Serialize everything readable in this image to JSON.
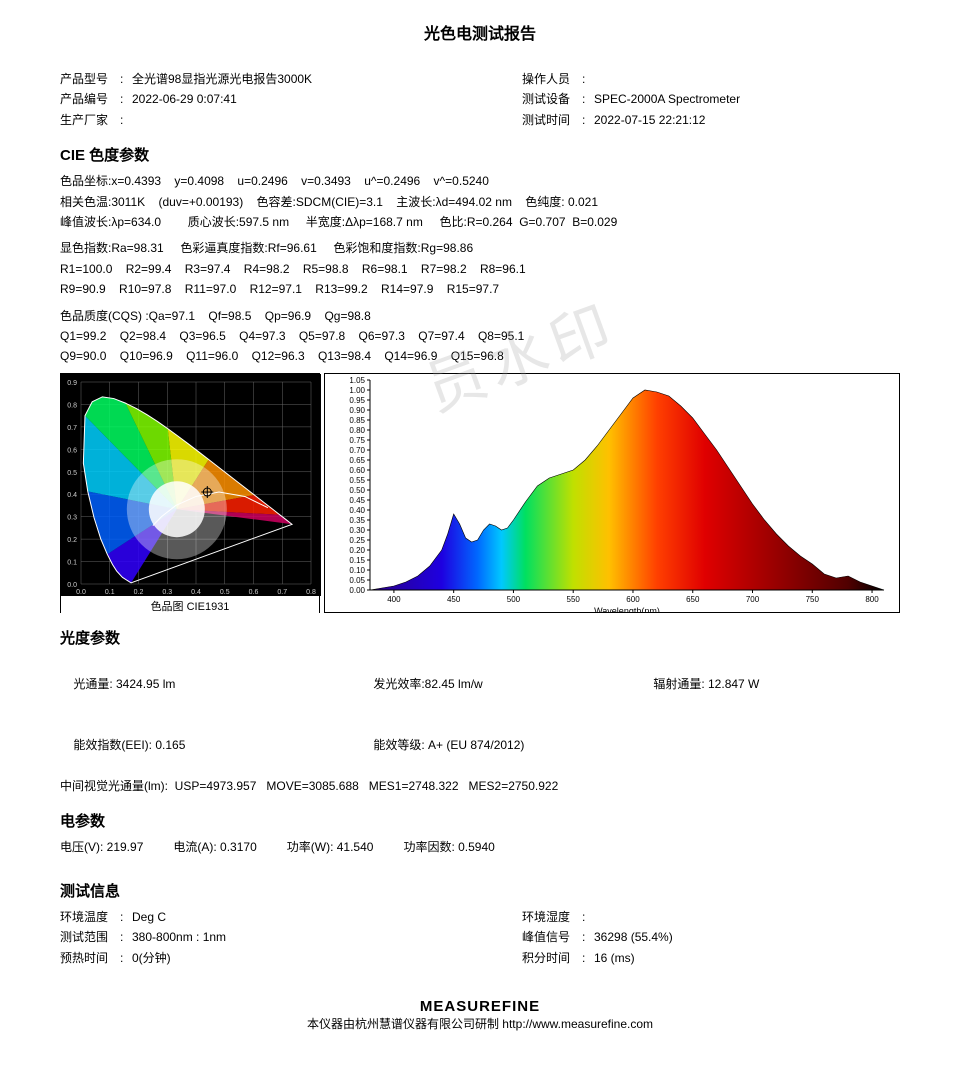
{
  "title": "光色电测试报告",
  "meta": {
    "left": {
      "model_label": "产品型号",
      "model_value": "全光谱98显指光源光电报告3000K",
      "serial_label": "产品编号",
      "serial_value": "2022-06-29 0:07:41",
      "manu_label": "生产厂家",
      "manu_value": ""
    },
    "right": {
      "operator_label": "操作人员",
      "operator_value": "",
      "device_label": "测试设备",
      "device_value": "SPEC-2000A Spectrometer",
      "time_label": "测试时间",
      "time_value": "2022-07-15 22:21:12"
    }
  },
  "cie_section_title": "CIE 色度参数",
  "cie_lines": [
    "色品坐标:x=0.4393    y=0.4098    u=0.2496    v=0.3493    u^=0.2496    v^=0.5240",
    "相关色温:3011K    (duv=+0.00193)    色容差:SDCM(CIE)=3.1    主波长:λd=494.02 nm    色纯度: 0.021",
    "峰值波长:λp=634.0        质心波长:597.5 nm     半宽度:Δλp=168.7 nm     色比:R=0.264  G=0.707  B=0.029"
  ],
  "cri_lines": [
    "显色指数:Ra=98.31     色彩逼真度指数:Rf=96.61     色彩饱和度指数:Rg=98.86",
    "R1=100.0    R2=99.4    R3=97.4    R4=98.2    R5=98.8    R6=98.1    R7=98.2    R8=96.1",
    "R9=90.9    R10=97.8    R11=97.0    R12=97.1    R13=99.2    R14=97.9    R15=97.7"
  ],
  "cqs_lines": [
    "色品质度(CQS) :Qa=97.1    Qf=98.5    Qp=96.9    Qg=98.8",
    "Q1=99.2    Q2=98.4    Q3=96.5    Q4=97.3    Q5=97.8    Q6=97.3    Q7=97.4    Q8=95.1",
    "Q9=90.0    Q10=96.9    Q11=96.0    Q12=96.3    Q13=98.4    Q14=96.9    Q15=96.8"
  ],
  "cie_chart": {
    "caption": "色品图 CIE1931",
    "bg": "#000000",
    "grid_color": "#666666",
    "locus_label_color": "#cccccc",
    "marker_x": 0.4393,
    "marker_y": 0.4098
  },
  "spd_chart": {
    "x_label": "Wavelength(nm)",
    "x_min": 380,
    "x_max": 810,
    "x_ticks": [
      400,
      450,
      500,
      550,
      600,
      650,
      700,
      750,
      800
    ],
    "y_min": 0,
    "y_max": 1.05,
    "y_ticks": [
      0.0,
      0.05,
      0.1,
      0.15,
      0.2,
      0.25,
      0.3,
      0.35,
      0.4,
      0.45,
      0.5,
      0.55,
      0.6,
      0.65,
      0.7,
      0.75,
      0.8,
      0.85,
      0.9,
      0.95,
      1.0,
      1.05
    ],
    "tick_fontsize": 8,
    "axis_color": "#000000",
    "stops": [
      {
        "nm": 380,
        "color": "#2b0084"
      },
      {
        "nm": 440,
        "color": "#1e00e0"
      },
      {
        "nm": 470,
        "color": "#0068ff"
      },
      {
        "nm": 490,
        "color": "#00c8ff"
      },
      {
        "nm": 510,
        "color": "#00e060"
      },
      {
        "nm": 550,
        "color": "#c0e000"
      },
      {
        "nm": 580,
        "color": "#ffc000"
      },
      {
        "nm": 620,
        "color": "#ff4000"
      },
      {
        "nm": 660,
        "color": "#e00000"
      },
      {
        "nm": 780,
        "color": "#500000"
      },
      {
        "nm": 810,
        "color": "#000000"
      }
    ],
    "curve": [
      [
        380,
        0.0
      ],
      [
        390,
        0.01
      ],
      [
        400,
        0.02
      ],
      [
        410,
        0.04
      ],
      [
        420,
        0.07
      ],
      [
        430,
        0.12
      ],
      [
        440,
        0.2
      ],
      [
        445,
        0.28
      ],
      [
        450,
        0.38
      ],
      [
        455,
        0.33
      ],
      [
        460,
        0.26
      ],
      [
        465,
        0.24
      ],
      [
        470,
        0.25
      ],
      [
        475,
        0.3
      ],
      [
        480,
        0.33
      ],
      [
        485,
        0.32
      ],
      [
        490,
        0.3
      ],
      [
        495,
        0.31
      ],
      [
        500,
        0.35
      ],
      [
        510,
        0.44
      ],
      [
        520,
        0.52
      ],
      [
        530,
        0.56
      ],
      [
        540,
        0.58
      ],
      [
        550,
        0.6
      ],
      [
        560,
        0.65
      ],
      [
        570,
        0.72
      ],
      [
        580,
        0.8
      ],
      [
        590,
        0.88
      ],
      [
        600,
        0.96
      ],
      [
        610,
        1.0
      ],
      [
        620,
        0.99
      ],
      [
        630,
        0.97
      ],
      [
        640,
        0.92
      ],
      [
        650,
        0.86
      ],
      [
        660,
        0.78
      ],
      [
        670,
        0.7
      ],
      [
        680,
        0.61
      ],
      [
        690,
        0.52
      ],
      [
        700,
        0.43
      ],
      [
        710,
        0.35
      ],
      [
        720,
        0.28
      ],
      [
        730,
        0.22
      ],
      [
        740,
        0.17
      ],
      [
        750,
        0.13
      ],
      [
        760,
        0.08
      ],
      [
        770,
        0.06
      ],
      [
        780,
        0.07
      ],
      [
        790,
        0.04
      ],
      [
        800,
        0.02
      ],
      [
        810,
        0.0
      ]
    ]
  },
  "photometric_title": "光度参数",
  "photometric": {
    "line1_a": "光通量: 3424.95 lm",
    "line1_b": "发光效率:82.45 lm/w",
    "line1_c": "辐射通量: 12.847 W",
    "line2_a": "能效指数(EEI): 0.165",
    "line2_b": "能效等级: A+ (EU 874/2012)",
    "line3": "中间视觉光通量(lm):  USP=4973.957   MOVE=3085.688   MES1=2748.322   MES2=2750.922"
  },
  "electrical_title": "电参数",
  "electrical_line": "电压(V): 219.97         电流(A): 0.3170         功率(W): 41.540         功率因数: 0.5940",
  "testinfo_title": "测试信息",
  "testinfo": {
    "left": {
      "temp_label": "环境温度",
      "temp_value": "Deg C",
      "range_label": "测试范围",
      "range_value": "380-800nm : 1nm",
      "preheat_label": "预热时间",
      "preheat_value": "0(分钟)"
    },
    "right": {
      "humid_label": "环境湿度",
      "humid_value": "",
      "peak_label": "峰值信号",
      "peak_value": "36298 (55.4%)",
      "integ_label": "积分时间",
      "integ_value": "16 (ms)"
    }
  },
  "footer": {
    "brand": "MEASUREFINE",
    "text": "本仪器由杭州慧谱仪器有限公司研制 http://www.measurefine.com"
  },
  "watermark": "员水印"
}
